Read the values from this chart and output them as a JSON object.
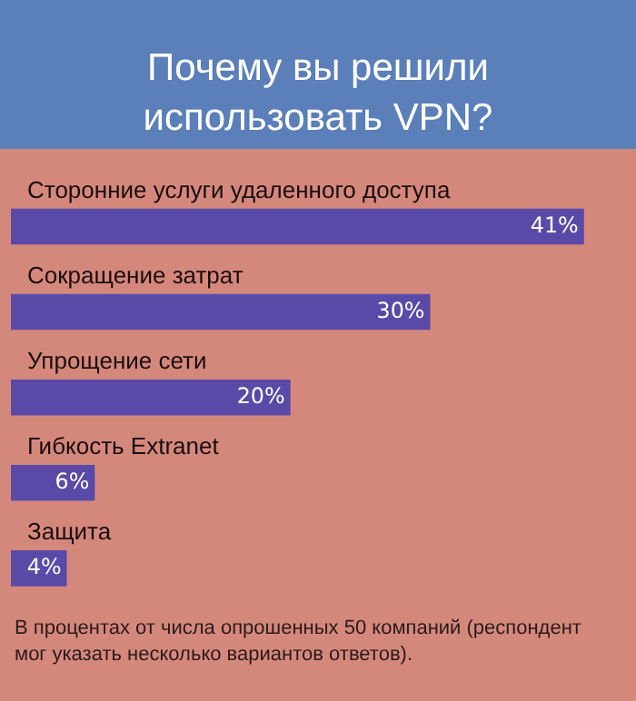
{
  "chart_data": {
    "type": "bar",
    "orientation": "horizontal",
    "title": "Почему вы решили использовать VPN?",
    "categories": [
      "Сторонние услуги удаленного доступа",
      "Сокращение затрат",
      "Упрощение сети",
      "Гибкость Extranet",
      "Защита"
    ],
    "values": [
      41,
      30,
      20,
      6,
      4
    ],
    "value_labels": [
      "41%",
      "30%",
      "20%",
      "6%",
      "4%"
    ],
    "color": "#5a4aa8",
    "annotations": [
      "В процентах от числа опрошенных 50 компаний (респондент мог указать несколько вариантов ответов)."
    ]
  }
}
